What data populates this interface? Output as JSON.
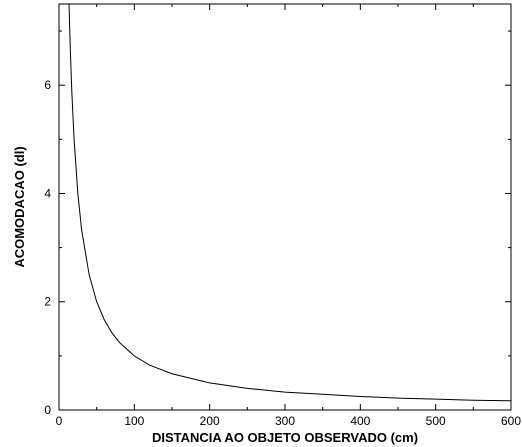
{
  "chart_data": {
    "type": "line",
    "title": "",
    "xlabel": "DISTANCIA AO OBJETO OBSERVADO (cm)",
    "ylabel": "ACOMODACAO (dl)",
    "xlim": [
      0,
      600
    ],
    "ylim": [
      0,
      7.5
    ],
    "x_ticks": [
      0,
      100,
      200,
      300,
      400,
      500,
      600
    ],
    "y_ticks": [
      0,
      2,
      4,
      6
    ],
    "grid": false,
    "legend": "none",
    "series": [
      {
        "color": "#000000",
        "x": [
          13.3,
          15,
          17,
          20,
          25,
          30,
          40,
          50,
          60,
          70,
          80,
          100,
          120,
          150,
          200,
          250,
          300,
          350,
          400,
          450,
          500,
          550,
          600
        ],
        "y": [
          7.5,
          6.67,
          5.88,
          5.0,
          4.0,
          3.33,
          2.5,
          2.0,
          1.67,
          1.43,
          1.25,
          1.0,
          0.83,
          0.67,
          0.5,
          0.4,
          0.33,
          0.29,
          0.25,
          0.22,
          0.2,
          0.18,
          0.17
        ]
      }
    ]
  }
}
